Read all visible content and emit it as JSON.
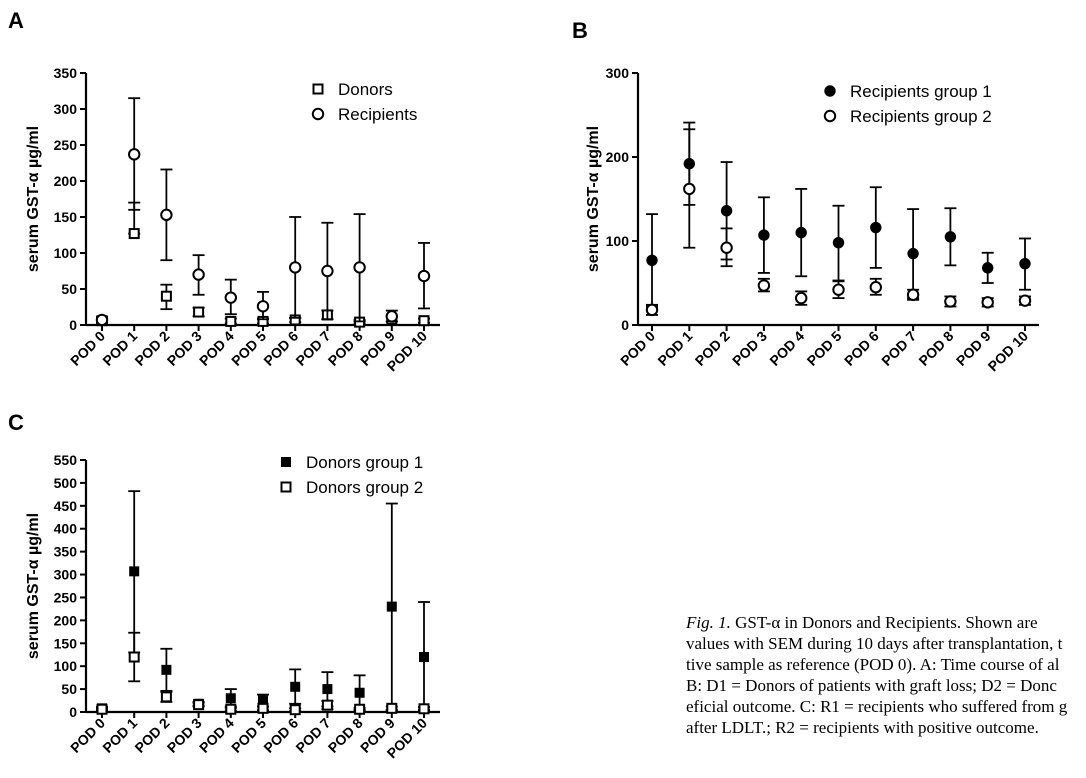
{
  "panels": [
    {
      "letter": "A",
      "chart_data": {
        "type": "scatter",
        "title": "",
        "ylabel": "serum GST-α µg/ml",
        "xlabel": "",
        "categories": [
          "POD 0",
          "POD 1",
          "POD 2",
          "POD 3",
          "POD 4",
          "POD 5",
          "POD 6",
          "POD 7",
          "POD 8",
          "POD 9",
          "POD 10"
        ],
        "ylim": [
          0,
          350
        ],
        "yticks": [
          0,
          50,
          100,
          150,
          200,
          250,
          300,
          350
        ],
        "legend_position": "top-right",
        "series": [
          {
            "name": "Donors",
            "marker": "open-square",
            "values": [
              6,
              127,
              40,
              18,
              5,
              5,
              7,
              14,
              4,
              8,
              6
            ],
            "err_low": [
              3,
              127,
              22,
              12,
              2,
              2,
              4,
              8,
              2,
              5,
              3
            ],
            "err_high": [
              9,
              170,
              56,
              24,
              9,
              9,
              10,
              20,
              7,
              12,
              9
            ]
          },
          {
            "name": "Recipients",
            "marker": "open-circle",
            "values": [
              7,
              237,
              153,
              70,
              38,
              26,
              80,
              75,
              80,
              12,
              68
            ],
            "err_low": [
              3,
              160,
              90,
              42,
              15,
              8,
              10,
              8,
              5,
              5,
              23
            ],
            "err_high": [
              11,
              315,
              216,
              97,
              63,
              46,
              150,
              142,
              154,
              20,
              114
            ]
          }
        ]
      }
    },
    {
      "letter": "B",
      "chart_data": {
        "type": "scatter",
        "title": "",
        "ylabel": "serum GST-α µg/ml",
        "xlabel": "",
        "categories": [
          "POD 0",
          "POD 1",
          "POD 2",
          "POD 3",
          "POD 4",
          "POD 5",
          "POD 6",
          "POD 7",
          "POD 8",
          "POD 9",
          "POD 10"
        ],
        "ylim": [
          0,
          300
        ],
        "yticks": [
          0,
          100,
          200,
          300
        ],
        "legend_position": "top-right",
        "series": [
          {
            "name": "Recipients group 1",
            "marker": "filled-circle",
            "values": [
              77,
              192,
              136,
              107,
              110,
              98,
              116,
              85,
              105,
              68,
              73
            ],
            "err_low": [
              22,
              143,
              78,
              62,
              58,
              53,
              68,
              32,
              71,
              50,
              42
            ],
            "err_high": [
              132,
              241,
              194,
              152,
              162,
              142,
              164,
              138,
              139,
              86,
              103
            ]
          },
          {
            "name": "Recipients group 2",
            "marker": "open-circle",
            "values": [
              18,
              162,
              92,
              47,
              32,
              42,
              45,
              36,
              28,
              27,
              29
            ],
            "err_low": [
              12,
              92,
              70,
              40,
              24,
              32,
              36,
              30,
              22,
              22,
              24
            ],
            "err_high": [
              24,
              233,
              115,
              55,
              40,
              52,
              55,
              42,
              34,
              32,
              34
            ]
          }
        ]
      }
    },
    {
      "letter": "C",
      "chart_data": {
        "type": "scatter",
        "title": "",
        "ylabel": "serum GST-α µg/ml",
        "xlabel": "",
        "categories": [
          "POD 0",
          "POD 1",
          "POD 2",
          "POD 3",
          "POD 4",
          "POD 5",
          "POD 6",
          "POD 7",
          "POD 8",
          "POD 9",
          "POD 10"
        ],
        "ylim": [
          0,
          550
        ],
        "yticks": [
          0,
          50,
          100,
          150,
          200,
          250,
          300,
          350,
          400,
          450,
          500,
          550
        ],
        "legend_position": "top-right",
        "series": [
          {
            "name": "Donors group 1",
            "marker": "filled-square",
            "values": [
              8,
              307,
              92,
              18,
              30,
              25,
              55,
              50,
              42,
              230,
              120
            ],
            "err_low": [
              5,
              130,
              46,
              14,
              12,
              12,
              18,
              12,
              5,
              5,
              5
            ],
            "err_high": [
              11,
              482,
              138,
              22,
              50,
              38,
              93,
              87,
              80,
              455,
              240
            ]
          },
          {
            "name": "Donors group 2",
            "marker": "open-square",
            "values": [
              6,
              120,
              33,
              16,
              6,
              8,
              5,
              15,
              6,
              8,
              7
            ],
            "err_low": [
              3,
              67,
              22,
              12,
              3,
              4,
              2,
              6,
              3,
              4,
              3
            ],
            "err_high": [
              9,
              173,
              44,
              20,
              9,
              12,
              8,
              24,
              9,
              12,
              11
            ]
          }
        ]
      }
    }
  ],
  "caption": {
    "fig_label": "Fig. 1.",
    "lines": [
      " GST-α in Donors and Recipients.  Shown are",
      "values with SEM during 10 days after transplantation, t",
      "tive sample as reference (POD 0). A: Time course of al",
      "B: D1 = Donors of patients with graft loss; D2 = Donc",
      "eficial outcome. C: R1 = recipients who suffered from g",
      "after LDLT.; R2 = recipients with positive outcome."
    ]
  }
}
